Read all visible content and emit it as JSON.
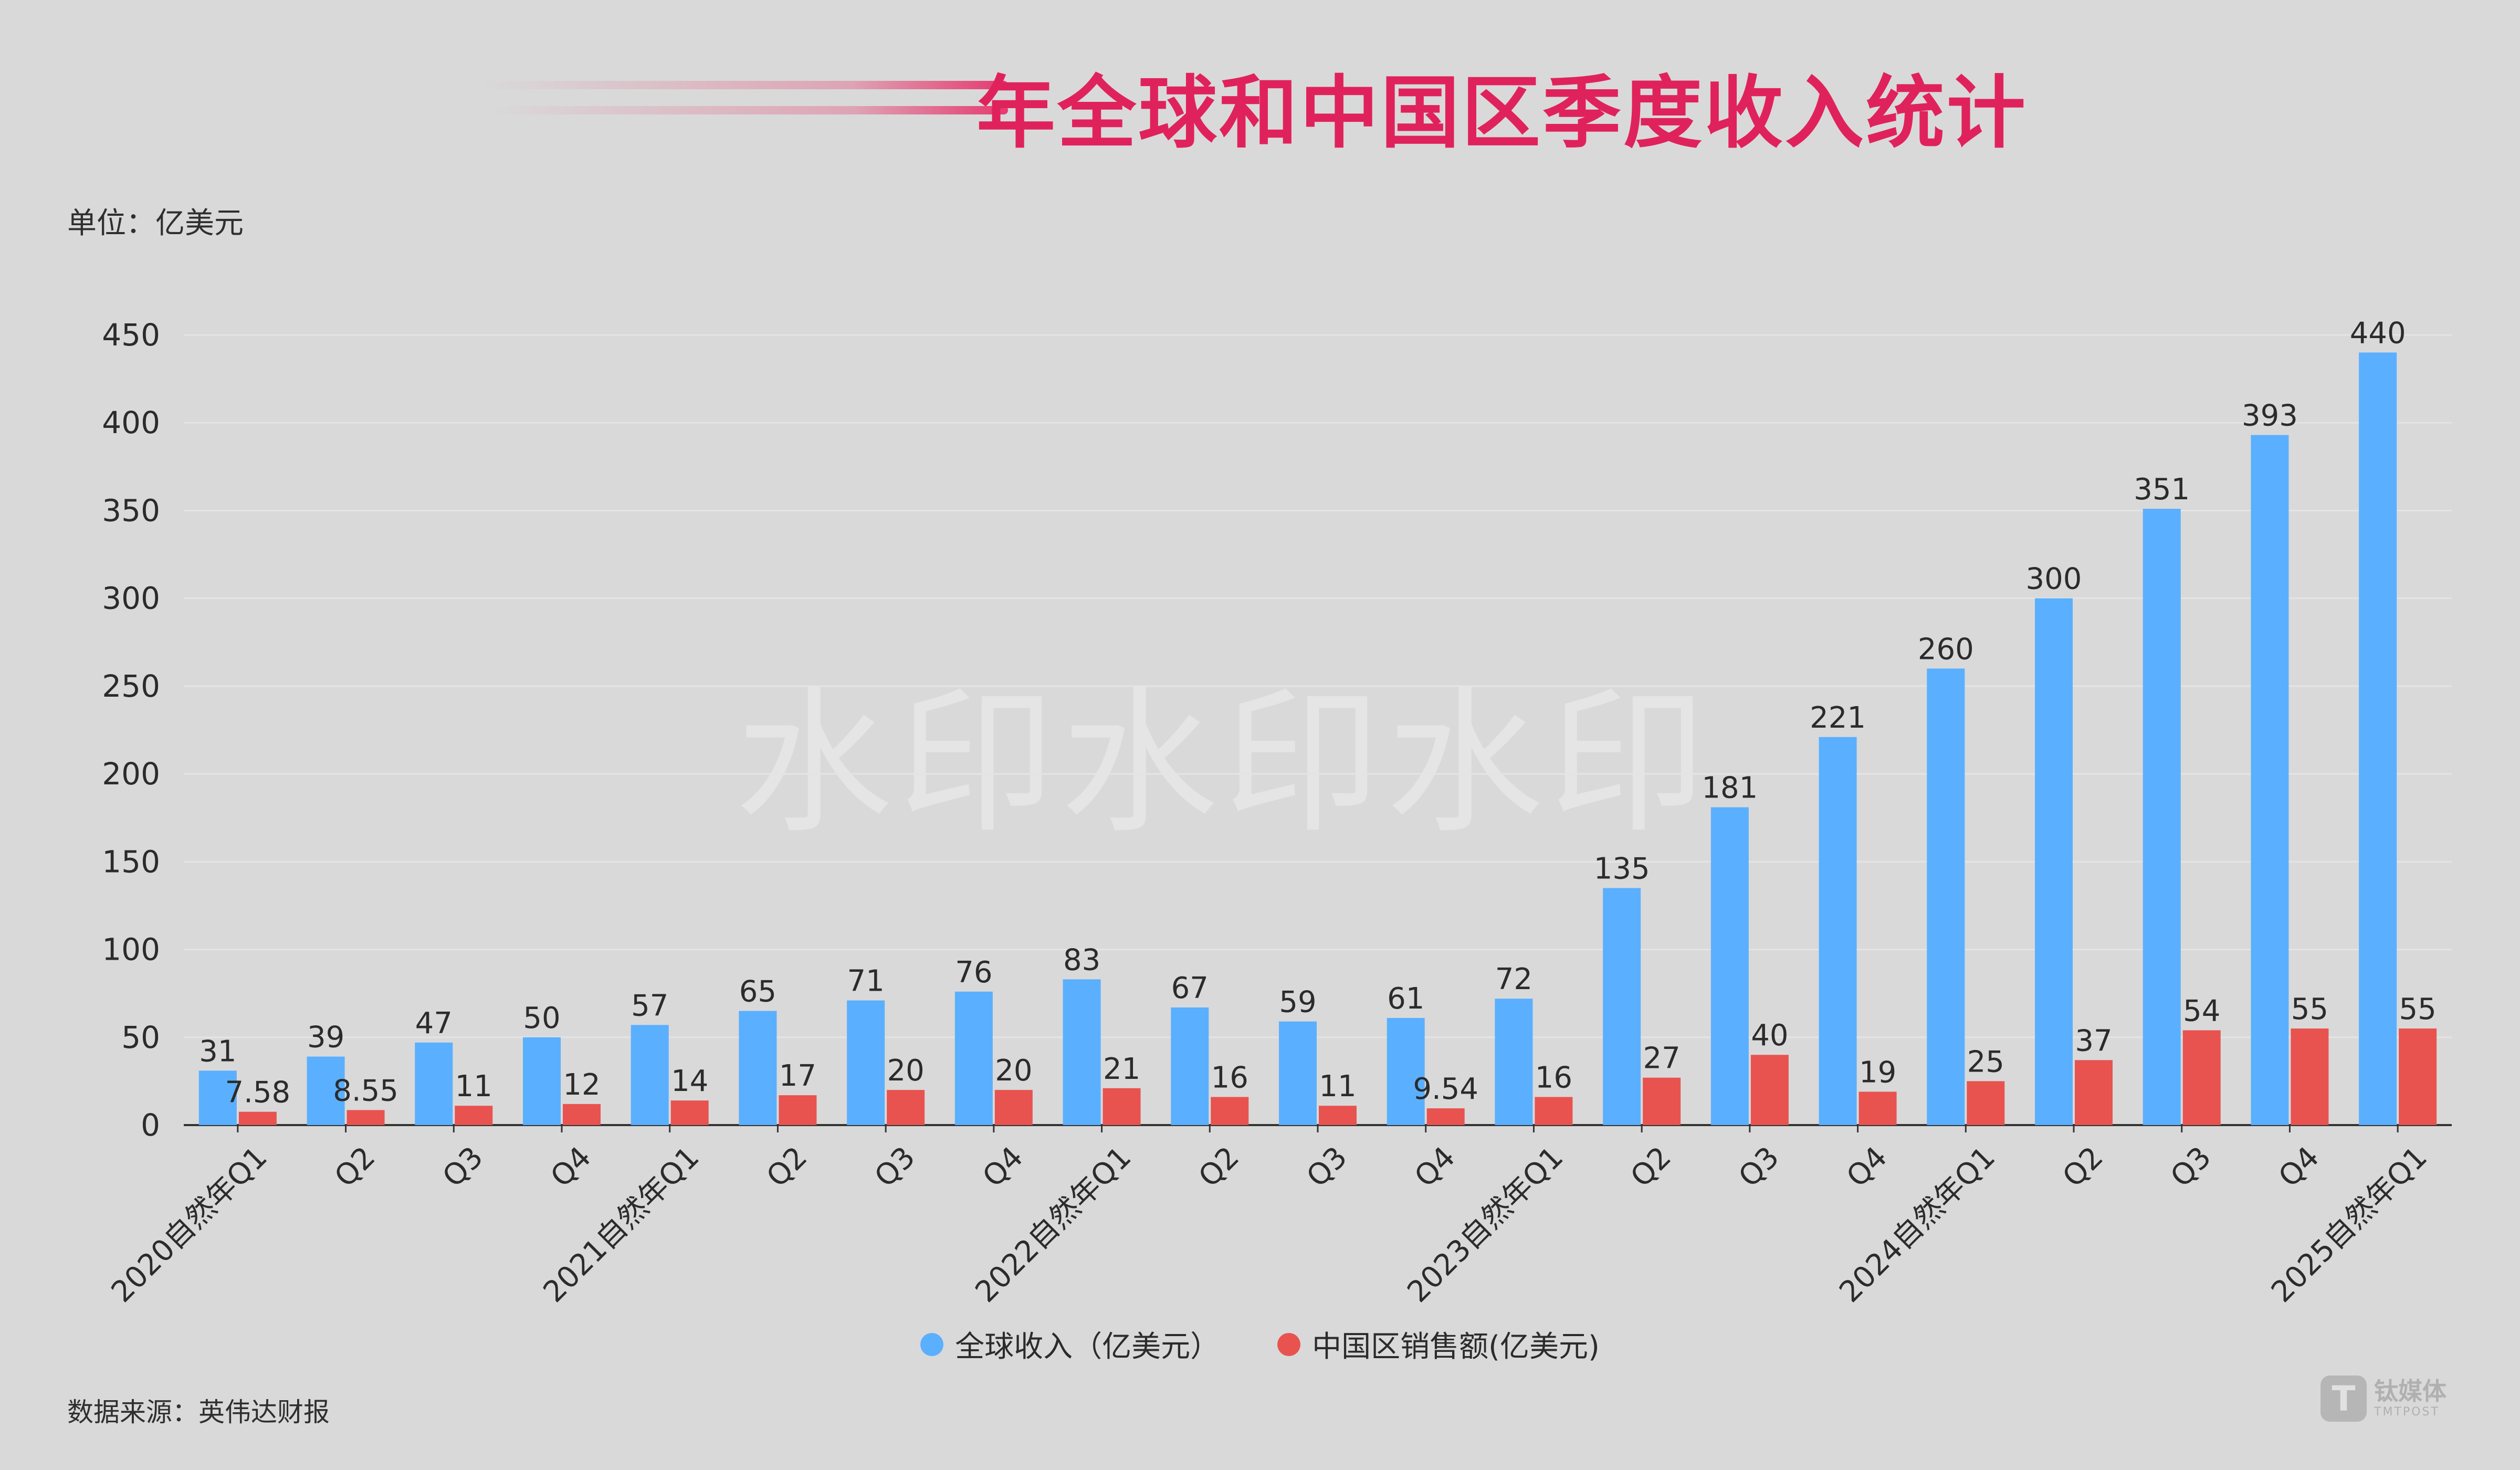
{
  "title": "年全球和中国区季度收入统计",
  "unit": "单位：亿美元",
  "source": "数据来源：英伟达财报",
  "watermark": "水印水印水印",
  "logo": {
    "cn": "钛媒体",
    "en": "TMTPOST",
    "mark": "T"
  },
  "colors": {
    "global": "#5aafff",
    "china": "#e8534f",
    "title": "#e0225c",
    "background": "#d9d9d9"
  },
  "chart_data": {
    "type": "bar",
    "categories": [
      "2020自然年Q1",
      "Q2",
      "Q3",
      "Q4",
      "2021自然年Q1",
      "Q2",
      "Q3",
      "Q4",
      "2022自然年Q1",
      "Q2",
      "Q3",
      "Q4",
      "2023自然年Q1",
      "Q2",
      "Q3",
      "Q4",
      "2024自然年Q1",
      "Q2",
      "Q3",
      "Q4",
      "2025自然年Q1"
    ],
    "series": [
      {
        "name": "全球收入（亿美元）",
        "values": [
          31,
          39,
          47,
          50,
          57,
          65,
          71,
          76,
          83,
          67,
          59,
          61,
          72,
          135,
          181,
          221,
          260,
          300,
          351,
          393,
          440
        ],
        "labels": [
          "31",
          "39",
          "47",
          "50",
          "57",
          "65",
          "71",
          "76",
          "83",
          "67",
          "59",
          "61",
          "72",
          "135",
          "181",
          "221",
          "260",
          "300",
          "351",
          "393",
          "440"
        ]
      },
      {
        "name": "中国区销售额(亿美元)",
        "values": [
          7.58,
          8.55,
          11,
          12,
          14,
          17,
          20,
          20,
          21,
          16,
          11,
          9.54,
          16,
          27,
          40,
          19,
          25,
          37,
          54,
          55,
          55
        ],
        "labels": [
          "7.58",
          "8.55",
          "11",
          "12",
          "14",
          "17",
          "20",
          "20",
          "21",
          "16",
          "11",
          "9.54",
          "16",
          "27",
          "40",
          "19",
          "25",
          "37",
          "54",
          "55",
          "55"
        ]
      }
    ],
    "ylim": [
      0,
      450
    ],
    "yticks": [
      0,
      50,
      100,
      150,
      200,
      250,
      300,
      350,
      400,
      450
    ],
    "grid": true,
    "legend": "bottom-center"
  }
}
